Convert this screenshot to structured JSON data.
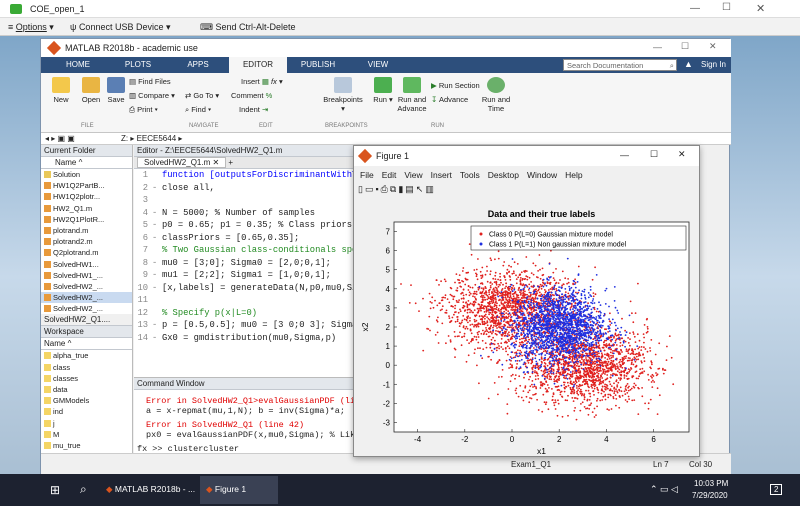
{
  "remote": {
    "title": "COE_open_1",
    "options_label": "Options",
    "connect_label": "Connect USB Device",
    "send_label": "Send Ctrl-Alt-Delete"
  },
  "matlab": {
    "title": "MATLAB R2018b - academic use",
    "tabs": [
      "HOME",
      "PLOTS",
      "APPS",
      "EDITOR",
      "PUBLISH",
      "VIEW"
    ],
    "search_placeholder": "Search Documentation",
    "sign_in": "Sign In",
    "ribbon": {
      "file": [
        "New",
        "Open",
        "Save"
      ],
      "find_files": "Find Files",
      "compare": "Compare",
      "print": "Print",
      "go_to": "Go To",
      "find": "Find",
      "insert": "Insert",
      "comment": "Comment",
      "indent": "Indent",
      "breakpoints": "Breakpoints",
      "run": "Run",
      "run_advance": "Run and Advance",
      "run_section": "Run Section",
      "advance": "Advance",
      "run_time": "Run and Time",
      "sections": [
        "FILE",
        "NAVIGATE",
        "EDIT",
        "BREAKPOINTS",
        "RUN"
      ]
    },
    "path": "Z: ▸ EECE5644 ▸",
    "current_folder": {
      "header": "Current Folder",
      "name_col": "Name ^",
      "files": [
        "Solution",
        "HW1Q2PartB...",
        "HW1Q2plotr...",
        "HW2_Q1.m",
        "HW2Q1PlotR...",
        "plotrand.m",
        "plotrand2.m",
        "Q2plotrand.m",
        "SolvedHW1...",
        "SolvedHW1_...",
        "SolvedHW2_...",
        "SolvedHW2_...",
        "SolvedHW2_..."
      ],
      "selected_file": "SolvedHW2_Q1...."
    },
    "workspace": {
      "header": "Workspace",
      "name_col": "Name ^",
      "vars": [
        "alpha_true",
        "class",
        "classes",
        "data",
        "GMModels",
        "ind",
        "j",
        "M",
        "mu_true"
      ]
    },
    "editor": {
      "header": "Editor - Z:\\EECE5644\\SolvedHW2_Q1.m",
      "tab": "SolvedHW2_Q1.m",
      "lines": [
        {
          "n": "1",
          "dash": "",
          "code": "function [outputsForDiscriminantWithTr"
        },
        {
          "n": "2",
          "dash": "-",
          "code": "close all,"
        },
        {
          "n": "3",
          "dash": "",
          "code": ""
        },
        {
          "n": "4",
          "dash": "-",
          "code": "N = 5000; % Number of samples"
        },
        {
          "n": "5",
          "dash": "-",
          "code": "p0 = 0.65; p1 = 0.35; % Class priors"
        },
        {
          "n": "6",
          "dash": "-",
          "code": "classPriors = [0.65,0.35];"
        },
        {
          "n": "7",
          "dash": "",
          "code": "% Two Gaussian class-conditionals spe"
        },
        {
          "n": "8",
          "dash": "-",
          "code": "mu0 = [3;0]; Sigma0 = [2,0;0,1];"
        },
        {
          "n": "9",
          "dash": "-",
          "code": "mu1 = [2;2]; Sigma1 = [1,0;0,1];"
        },
        {
          "n": "10",
          "dash": "-",
          "code": "[x,labels] = generateData(N,p0,mu0,Si"
        },
        {
          "n": "11",
          "dash": "",
          "code": ""
        },
        {
          "n": "12",
          "dash": "",
          "code": "% Specify p(x|L=0)"
        },
        {
          "n": "13",
          "dash": "-",
          "code": "p = [0.5,0.5]; mu0 = [3 0;0 3]; Sigma"
        },
        {
          "n": "14",
          "dash": "-",
          "code": "Gx0 = gmdistribution(mu0,Sigma,p)"
        }
      ]
    },
    "command_window": {
      "header": "Command Window",
      "err1": "Error in SolvedHW2_Q1>evalGaussianPDF (line",
      "code1": "a = x-repmat(mu,1,N); b = inv(Sigma)*a;",
      "err2": "Error in SolvedHW2_Q1 (line 42)",
      "code2": "px0 = evalGaussianPDF(x,mu0,Sigma); % Likel",
      "prompt": "fx >> clustercluster"
    },
    "status": {
      "script": "Exam1_Q1",
      "ln": "Ln 7",
      "col": "Col 30"
    }
  },
  "figure": {
    "title": "Figure 1",
    "menu": [
      "File",
      "Edit",
      "View",
      "Insert",
      "Tools",
      "Desktop",
      "Window",
      "Help"
    ]
  },
  "chart_data": {
    "type": "scatter",
    "title": "Data and their true labels",
    "xlabel": "x1",
    "ylabel": "x2",
    "xlim": [
      -5,
      7.5
    ],
    "ylim": [
      -3.5,
      7.5
    ],
    "xticks": [
      -4,
      -2,
      0,
      2,
      4,
      6
    ],
    "yticks": [
      -3,
      -2,
      -1,
      0,
      1,
      2,
      3,
      4,
      5,
      6,
      7
    ],
    "legend_position": "top-right",
    "series": [
      {
        "name": "Class 0 P(L=0) Gaussian mixture model",
        "color": "#e0201e",
        "marker": "dot",
        "count": 3250,
        "mixture": [
          {
            "weight": 0.5,
            "mean": [
              3,
              0
            ],
            "sd": [
              1.41,
              1
            ]
          },
          {
            "weight": 0.5,
            "mean": [
              0,
              3
            ],
            "sd": [
              1.41,
              1
            ]
          }
        ]
      },
      {
        "name": "Class 1 P(L=1) Non gaussian mixture model",
        "color": "#1f2fe0",
        "marker": "dot",
        "count": 1750,
        "mean": [
          2,
          2
        ],
        "sd": [
          1,
          1
        ]
      }
    ]
  },
  "taskbar": {
    "matlab_label": "MATLAB R2018b - ...",
    "figure_label": "Figure 1",
    "time": "10:03 PM",
    "date": "7/29/2020",
    "notif": "2"
  }
}
